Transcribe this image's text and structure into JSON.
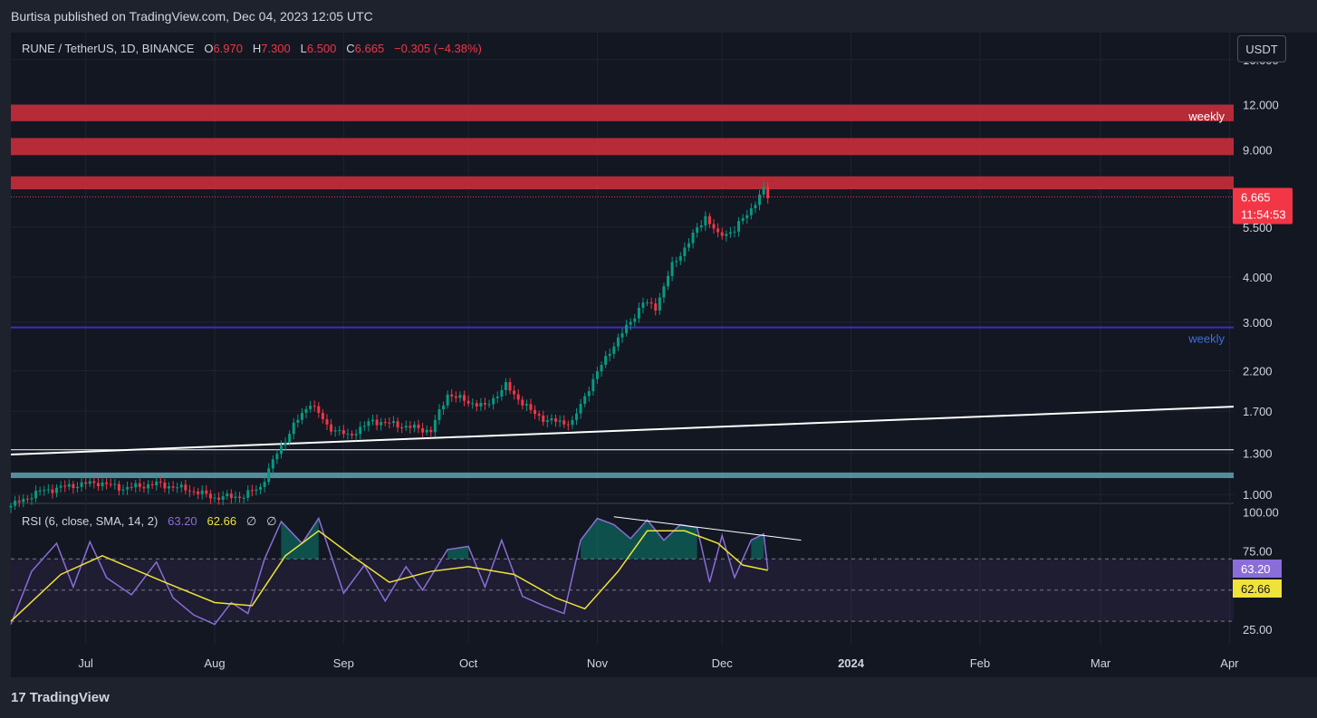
{
  "header": {
    "published": "Burtisa published on TradingView.com, Dec 04, 2023 12:05 UTC"
  },
  "legend": {
    "symbol": "RUNE / TetherUS, 1D, BINANCE",
    "o_label": "O",
    "o": "6.970",
    "h_label": "H",
    "h": "7.300",
    "l_label": "L",
    "l": "6.500",
    "c_label": "C",
    "c": "6.665",
    "change": "−0.305 (−4.38%)"
  },
  "currency_button": "USDT",
  "footer": {
    "brand": "TradingView",
    "logo_glyph": "17"
  },
  "colors": {
    "up": "#089981",
    "down": "#f23645",
    "zone": "#d32f3b",
    "blue_line": "#3c2fbf",
    "support_zone": "#5fa3b0",
    "rsi": "#8a6dd8",
    "rsi_ma": "#f0e23a",
    "bg": "#131722",
    "page": "#1e222d"
  },
  "chart_data": [
    {
      "type": "candlestick",
      "title": "RUNE / TetherUS, 1D, BINANCE",
      "y_scale": "log",
      "ylim": [
        0.95,
        19.0
      ],
      "y_ticks": [
        "16.000",
        "12.000",
        "9.000",
        "7.000",
        "5.500",
        "4.000",
        "3.000",
        "2.200",
        "1.700",
        "1.300",
        "1.000"
      ],
      "x_ticks": [
        {
          "label": "Jul",
          "date": "2023-07-01"
        },
        {
          "label": "Aug",
          "date": "2023-08-01"
        },
        {
          "label": "Sep",
          "date": "2023-09-01"
        },
        {
          "label": "Oct",
          "date": "2023-10-01"
        },
        {
          "label": "Nov",
          "date": "2023-11-01"
        },
        {
          "label": "Dec",
          "date": "2023-12-01"
        },
        {
          "label": "2024",
          "date": "2024-01-01"
        },
        {
          "label": "Feb",
          "date": "2024-02-01"
        },
        {
          "label": "Mar",
          "date": "2024-03-01"
        },
        {
          "label": "Apr",
          "date": "2024-04-01"
        }
      ],
      "xlim": [
        "2023-06-13",
        "2024-04-02"
      ],
      "ohlc_anchor_closes": [
        {
          "date": "2023-06-13",
          "close": 0.93
        },
        {
          "date": "2023-06-20",
          "close": 1.02
        },
        {
          "date": "2023-06-28",
          "close": 1.06
        },
        {
          "date": "2023-07-04",
          "close": 1.08
        },
        {
          "date": "2023-07-10",
          "close": 1.04
        },
        {
          "date": "2023-07-18",
          "close": 1.07
        },
        {
          "date": "2023-07-26",
          "close": 1.03
        },
        {
          "date": "2023-08-01",
          "close": 0.98
        },
        {
          "date": "2023-08-08",
          "close": 0.99
        },
        {
          "date": "2023-08-12",
          "close": 1.05
        },
        {
          "date": "2023-08-16",
          "close": 1.3
        },
        {
          "date": "2023-08-20",
          "close": 1.55
        },
        {
          "date": "2023-08-24",
          "close": 1.8
        },
        {
          "date": "2023-08-28",
          "close": 1.55
        },
        {
          "date": "2023-09-02",
          "close": 1.45
        },
        {
          "date": "2023-09-08",
          "close": 1.6
        },
        {
          "date": "2023-09-15",
          "close": 1.55
        },
        {
          "date": "2023-09-22",
          "close": 1.5
        },
        {
          "date": "2023-09-26",
          "close": 1.9
        },
        {
          "date": "2023-09-30",
          "close": 1.82
        },
        {
          "date": "2023-10-05",
          "close": 1.75
        },
        {
          "date": "2023-10-10",
          "close": 2.0
        },
        {
          "date": "2023-10-16",
          "close": 1.7
        },
        {
          "date": "2023-10-20",
          "close": 1.6
        },
        {
          "date": "2023-10-26",
          "close": 1.58
        },
        {
          "date": "2023-10-30",
          "close": 1.98
        },
        {
          "date": "2023-11-04",
          "close": 2.5
        },
        {
          "date": "2023-11-08",
          "close": 2.9
        },
        {
          "date": "2023-11-12",
          "close": 3.4
        },
        {
          "date": "2023-11-15",
          "close": 3.3
        },
        {
          "date": "2023-11-19",
          "close": 4.3
        },
        {
          "date": "2023-11-23",
          "close": 5.0
        },
        {
          "date": "2023-11-27",
          "close": 5.9
        },
        {
          "date": "2023-11-30",
          "close": 5.2
        },
        {
          "date": "2023-12-04",
          "close": 5.4
        },
        {
          "date": "2023-12-08",
          "close": 6.2
        },
        {
          "date": "2023-12-11",
          "close": 6.97
        },
        {
          "date": "2023-12-12",
          "close": 6.665
        }
      ],
      "last_price_label": "6.665",
      "countdown": "11:54:53",
      "zones": [
        {
          "from": 10.8,
          "to": 12.0,
          "label": "weekly",
          "color": "#d32f3b"
        },
        {
          "from": 8.7,
          "to": 9.7,
          "label": "",
          "color": "#d32f3b"
        },
        {
          "from": 7.0,
          "to": 7.6,
          "label": "",
          "color": "#d32f3b"
        },
        {
          "from": 1.11,
          "to": 1.15,
          "label": "",
          "color": "#5fa3b0"
        }
      ],
      "h_lines": [
        {
          "value": 2.9,
          "color": "#3c2fbf",
          "label": "weekly"
        },
        {
          "value": 1.33,
          "color": "#ffffff",
          "label": ""
        }
      ],
      "trendline": {
        "from": {
          "date": "2023-06-13",
          "value": 1.29
        },
        "to": {
          "date": "2024-04-02",
          "value": 1.75
        }
      }
    },
    {
      "type": "line",
      "title": "RSI (6, close, SMA, 14, 2)",
      "legend_values": [
        "63.20",
        "62.66",
        "∅",
        "∅"
      ],
      "ylim": [
        15,
        105
      ],
      "y_ticks": [
        "100.00",
        "75.00",
        "25.00"
      ],
      "bands": [
        70,
        50,
        30
      ],
      "series": [
        {
          "name": "RSI",
          "points": [
            {
              "date": "2023-06-13",
              "value": 28
            },
            {
              "date": "2023-06-18",
              "value": 62
            },
            {
              "date": "2023-06-24",
              "value": 80
            },
            {
              "date": "2023-06-28",
              "value": 52
            },
            {
              "date": "2023-07-02",
              "value": 81
            },
            {
              "date": "2023-07-06",
              "value": 58
            },
            {
              "date": "2023-07-12",
              "value": 47
            },
            {
              "date": "2023-07-18",
              "value": 68
            },
            {
              "date": "2023-07-22",
              "value": 45
            },
            {
              "date": "2023-07-27",
              "value": 34
            },
            {
              "date": "2023-08-01",
              "value": 28
            },
            {
              "date": "2023-08-05",
              "value": 42
            },
            {
              "date": "2023-08-09",
              "value": 35
            },
            {
              "date": "2023-08-13",
              "value": 70
            },
            {
              "date": "2023-08-17",
              "value": 94
            },
            {
              "date": "2023-08-22",
              "value": 80
            },
            {
              "date": "2023-08-26",
              "value": 96
            },
            {
              "date": "2023-09-01",
              "value": 48
            },
            {
              "date": "2023-09-06",
              "value": 66
            },
            {
              "date": "2023-09-11",
              "value": 43
            },
            {
              "date": "2023-09-16",
              "value": 65
            },
            {
              "date": "2023-09-20",
              "value": 50
            },
            {
              "date": "2023-09-26",
              "value": 76
            },
            {
              "date": "2023-10-01",
              "value": 78
            },
            {
              "date": "2023-10-05",
              "value": 52
            },
            {
              "date": "2023-10-09",
              "value": 82
            },
            {
              "date": "2023-10-14",
              "value": 46
            },
            {
              "date": "2023-10-19",
              "value": 40
            },
            {
              "date": "2023-10-24",
              "value": 35
            },
            {
              "date": "2023-10-28",
              "value": 82
            },
            {
              "date": "2023-11-01",
              "value": 96
            },
            {
              "date": "2023-11-05",
              "value": 92
            },
            {
              "date": "2023-11-09",
              "value": 83
            },
            {
              "date": "2023-11-13",
              "value": 95
            },
            {
              "date": "2023-11-17",
              "value": 82
            },
            {
              "date": "2023-11-21",
              "value": 92
            },
            {
              "date": "2023-11-25",
              "value": 90
            },
            {
              "date": "2023-11-28",
              "value": 55
            },
            {
              "date": "2023-12-01",
              "value": 85
            },
            {
              "date": "2023-12-04",
              "value": 58
            },
            {
              "date": "2023-12-08",
              "value": 82
            },
            {
              "date": "2023-12-11",
              "value": 86
            },
            {
              "date": "2023-12-12",
              "value": 63.2
            }
          ]
        },
        {
          "name": "RSI-based MA",
          "points": [
            {
              "date": "2023-06-13",
              "value": 30
            },
            {
              "date": "2023-06-25",
              "value": 60
            },
            {
              "date": "2023-07-05",
              "value": 72
            },
            {
              "date": "2023-07-20",
              "value": 55
            },
            {
              "date": "2023-08-01",
              "value": 42
            },
            {
              "date": "2023-08-10",
              "value": 40
            },
            {
              "date": "2023-08-18",
              "value": 72
            },
            {
              "date": "2023-08-26",
              "value": 88
            },
            {
              "date": "2023-09-03",
              "value": 72
            },
            {
              "date": "2023-09-12",
              "value": 55
            },
            {
              "date": "2023-09-22",
              "value": 62
            },
            {
              "date": "2023-10-01",
              "value": 65
            },
            {
              "date": "2023-10-12",
              "value": 60
            },
            {
              "date": "2023-10-22",
              "value": 45
            },
            {
              "date": "2023-10-29",
              "value": 38
            },
            {
              "date": "2023-11-06",
              "value": 62
            },
            {
              "date": "2023-11-13",
              "value": 88
            },
            {
              "date": "2023-11-22",
              "value": 88
            },
            {
              "date": "2023-11-30",
              "value": 80
            },
            {
              "date": "2023-12-06",
              "value": 66
            },
            {
              "date": "2023-12-12",
              "value": 62.66
            }
          ]
        }
      ],
      "trendline": {
        "from": {
          "date": "2023-11-05",
          "value": 97
        },
        "to": {
          "date": "2023-12-20",
          "value": 82
        }
      }
    }
  ]
}
